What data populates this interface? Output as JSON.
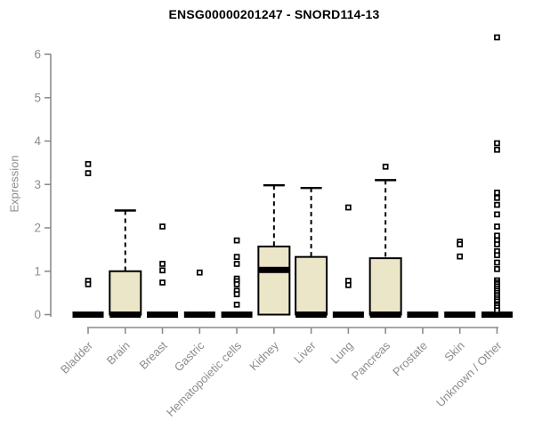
{
  "chart_data": {
    "type": "boxplot",
    "title": "ENSG00000201247 - SNORD114-13",
    "xlabel": "",
    "ylabel": "Expression",
    "ylim": [
      0,
      6
    ],
    "yticks": [
      0,
      1,
      2,
      3,
      4,
      5,
      6
    ],
    "grid": false,
    "legend": "none",
    "boxes": [
      {
        "label": "Bladder",
        "q1": 0,
        "median": 0,
        "q3": 0,
        "whisker_low": 0,
        "whisker_high": 0,
        "outliers": [
          3.47,
          3.26,
          0.78,
          0.7
        ]
      },
      {
        "label": "Brain",
        "q1": 0,
        "median": 0,
        "q3": 1.0,
        "whisker_low": 0,
        "whisker_high": 2.4,
        "outliers": []
      },
      {
        "label": "Breast",
        "q1": 0,
        "median": 0,
        "q3": 0,
        "whisker_low": 0,
        "whisker_high": 0,
        "outliers": [
          2.03,
          1.17,
          1.02,
          0.74
        ]
      },
      {
        "label": "Gastric",
        "q1": 0,
        "median": 0,
        "q3": 0,
        "whisker_low": 0,
        "whisker_high": 0,
        "outliers": [
          0.97
        ]
      },
      {
        "label": "Hematopoietic cells",
        "q1": 0,
        "median": 0,
        "q3": 0,
        "whisker_low": 0,
        "whisker_high": 0,
        "outliers": [
          1.71,
          1.33,
          1.17,
          0.83,
          0.77,
          0.7,
          0.55,
          0.47,
          0.23
        ]
      },
      {
        "label": "Kidney",
        "q1": 0,
        "median": 1.03,
        "q3": 1.57,
        "whisker_low": 0,
        "whisker_high": 2.98,
        "outliers": []
      },
      {
        "label": "Liver",
        "q1": 0,
        "median": 0,
        "q3": 1.33,
        "whisker_low": 0,
        "whisker_high": 2.92,
        "outliers": []
      },
      {
        "label": "Lung",
        "q1": 0,
        "median": 0,
        "q3": 0,
        "whisker_low": 0,
        "whisker_high": 0,
        "outliers": [
          2.47,
          0.78,
          0.68
        ]
      },
      {
        "label": "Pancreas",
        "q1": 0,
        "median": 0,
        "q3": 1.3,
        "whisker_low": 0,
        "whisker_high": 3.1,
        "outliers": [
          3.41
        ]
      },
      {
        "label": "Prostate",
        "q1": 0,
        "median": 0,
        "q3": 0,
        "whisker_low": 0,
        "whisker_high": 0,
        "outliers": []
      },
      {
        "label": "Skin",
        "q1": 0,
        "median": 0,
        "q3": 0,
        "whisker_low": 0,
        "whisker_high": 0,
        "outliers": [
          1.68,
          1.62,
          1.34
        ]
      },
      {
        "label": "Unknown / Other",
        "q1": 0,
        "median": 0,
        "q3": 0,
        "whisker_low": 0,
        "whisker_high": 0,
        "outliers": [
          6.39,
          3.95,
          3.8,
          2.81,
          2.69,
          2.53,
          2.31,
          2.03,
          1.82,
          1.71,
          1.62,
          1.46,
          1.37,
          1.2,
          1.05,
          0.79,
          0.74,
          0.7,
          0.65,
          0.6,
          0.55,
          0.5,
          0.45,
          0.4,
          0.35,
          0.3,
          0.24,
          0.21,
          0.16,
          0.1
        ]
      }
    ],
    "colors": {
      "box_fill": "#ece6c8",
      "box_stroke": "#000000",
      "median": "#000000",
      "whisker": "#000000",
      "outlier_stroke": "#000000",
      "axis": "#8c8c8c",
      "tick_label": "#8c8c8c",
      "title": "#000000"
    }
  }
}
